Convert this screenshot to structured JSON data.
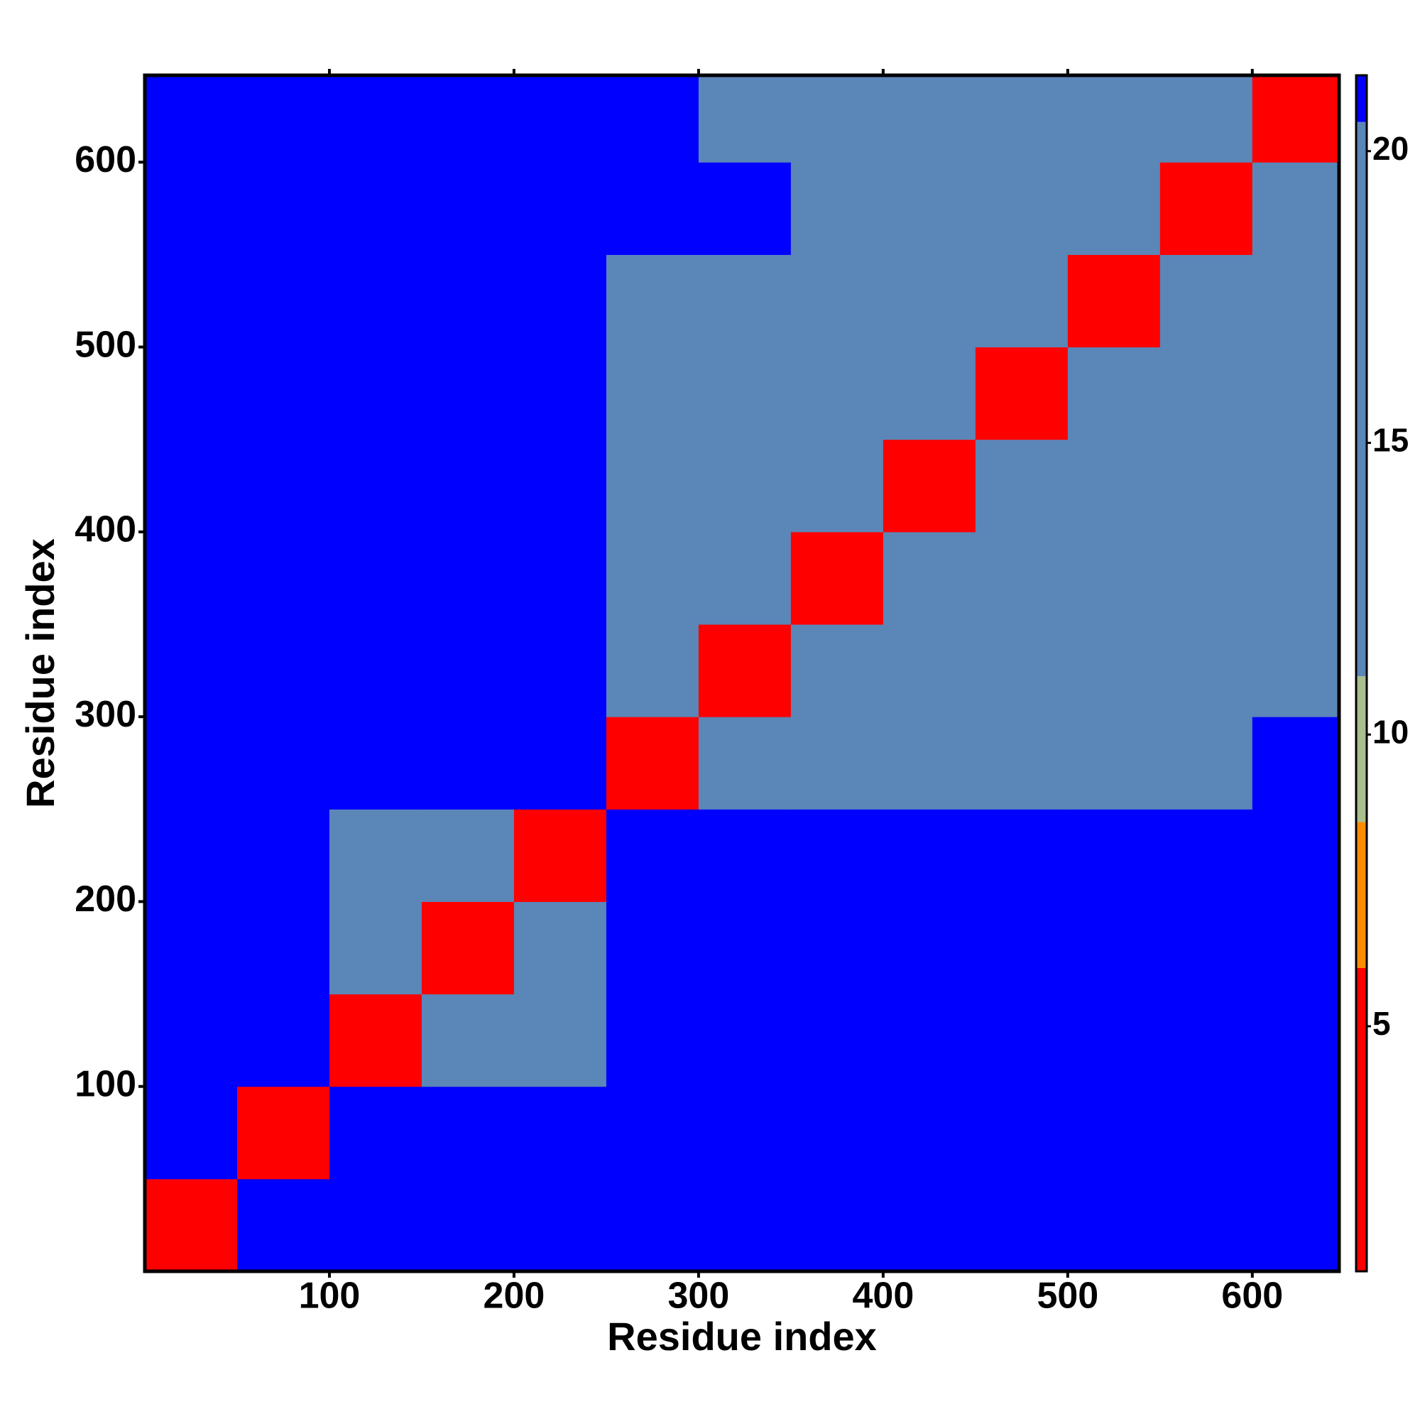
{
  "chart_data": {
    "type": "heatmap",
    "xlabel": "Residue index",
    "ylabel": "Residue index",
    "xlim": [
      0,
      647
    ],
    "ylim": [
      0,
      647
    ],
    "xticks": [
      100,
      200,
      300,
      400,
      500,
      600
    ],
    "yticks": [
      100,
      200,
      300,
      400,
      500,
      600
    ],
    "xbins": [
      0,
      50,
      100,
      150,
      200,
      250,
      300,
      350,
      400,
      450,
      500,
      550,
      600,
      650
    ],
    "ybins": [
      0,
      50,
      100,
      150,
      200,
      250,
      300,
      350,
      400,
      450,
      500,
      550,
      600,
      650
    ],
    "z": [
      [
        3,
        21,
        21,
        21,
        21,
        21,
        21,
        21,
        21,
        21,
        21,
        21,
        21
      ],
      [
        21,
        3,
        21,
        21,
        21,
        21,
        21,
        21,
        21,
        21,
        21,
        21,
        21
      ],
      [
        21,
        21,
        3,
        16,
        16,
        21,
        21,
        21,
        21,
        21,
        21,
        21,
        21
      ],
      [
        21,
        21,
        16,
        3,
        16,
        21,
        21,
        21,
        21,
        21,
        21,
        21,
        21
      ],
      [
        21,
        21,
        16,
        16,
        3,
        21,
        21,
        21,
        21,
        21,
        21,
        21,
        21
      ],
      [
        21,
        21,
        21,
        21,
        21,
        3,
        16,
        16,
        16,
        16,
        16,
        16,
        21
      ],
      [
        21,
        21,
        21,
        21,
        21,
        16,
        3,
        16,
        16,
        16,
        16,
        16,
        16
      ],
      [
        21,
        21,
        21,
        21,
        21,
        16,
        16,
        3,
        16,
        16,
        16,
        16,
        16
      ],
      [
        21,
        21,
        21,
        21,
        21,
        16,
        16,
        16,
        3,
        16,
        16,
        16,
        16
      ],
      [
        21,
        21,
        21,
        21,
        21,
        16,
        16,
        16,
        16,
        3,
        16,
        16,
        16
      ],
      [
        21,
        21,
        21,
        21,
        21,
        16,
        16,
        16,
        16,
        16,
        3,
        16,
        16
      ],
      [
        21,
        21,
        21,
        21,
        21,
        21,
        21,
        16,
        16,
        16,
        16,
        3,
        16
      ],
      [
        21,
        21,
        21,
        21,
        21,
        21,
        16,
        16,
        16,
        16,
        16,
        16,
        3
      ]
    ],
    "zlim": [
      0.8,
      21.3
    ],
    "zticks": [
      5,
      10,
      15,
      20
    ],
    "colorscale": [
      {
        "value": 0.8,
        "color": "#ff0000"
      },
      {
        "value": 6,
        "color": "#ff8c00"
      },
      {
        "value": 8.5,
        "color": "#a9bf8c"
      },
      {
        "value": 11,
        "color": "#5b86b8"
      },
      {
        "value": 20.5,
        "color": "#0000ff"
      }
    ]
  }
}
